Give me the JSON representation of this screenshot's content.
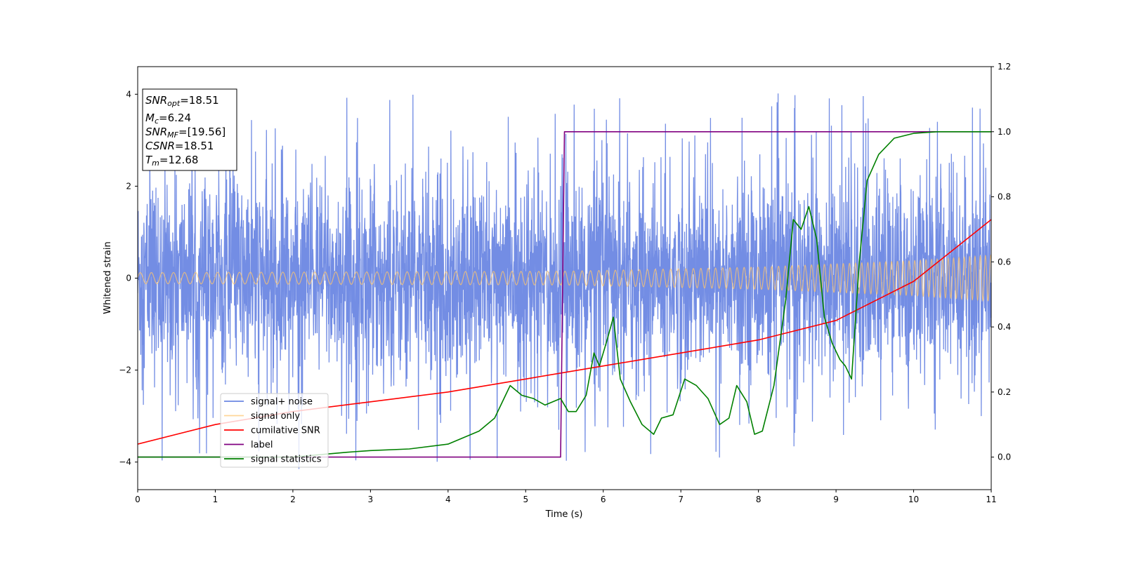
{
  "chart_data": {
    "type": "line",
    "xlabel": "Time (s)",
    "ylabel": "Whitened strain",
    "xlim": [
      0,
      11
    ],
    "ylim": [
      -4.6,
      4.6
    ],
    "y2lim": [
      -0.1,
      1.2
    ],
    "xticks": [
      0,
      1,
      2,
      3,
      4,
      5,
      6,
      7,
      8,
      9,
      10,
      11
    ],
    "yticks": [
      -4,
      -2,
      0,
      2,
      4
    ],
    "y2ticks": [
      0.0,
      0.2,
      0.4,
      0.6,
      0.8,
      1.0,
      1.2
    ],
    "y2tick_labels": [
      "0.0",
      "0.2",
      "0.4",
      "0.6",
      "0.8",
      "1.0",
      "1.2"
    ],
    "grid": false,
    "legend_position": "lower-left",
    "info_box": {
      "snr_opt": {
        "sym": "SNR",
        "sub": "opt",
        "val": "=18.51"
      },
      "mc": {
        "sym": "M",
        "sub": "c",
        "val": "=6.24"
      },
      "snr_mf": {
        "sym": "SNR",
        "sub": "MF",
        "val": "=[19.56]"
      },
      "csnr": {
        "sym": "CSNR",
        "val": "=18.51"
      },
      "tm": {
        "sym": "T",
        "sub": "m",
        "val": "=12.68"
      }
    },
    "series": [
      {
        "name": "signal+ noise",
        "color": "#6b87e3",
        "axis": "left",
        "description_envelope": {
          "typical_amplitude": 1.8,
          "peak_amplitude": 4.2,
          "min_value": -4.1
        }
      },
      {
        "name": "signal only",
        "color": "#ffc56e",
        "axis": "left",
        "amplitude": [
          [
            0,
            0.12
          ],
          [
            5.5,
            0.15
          ],
          [
            8,
            0.24
          ],
          [
            10,
            0.38
          ],
          [
            11,
            0.5
          ]
        ]
      },
      {
        "name": "cumilative SNR",
        "color": "#ff0000",
        "axis": "right",
        "x": [
          0,
          1,
          2,
          3,
          4,
          5,
          6,
          7,
          8,
          9,
          10,
          11
        ],
        "y": [
          0.04,
          0.1,
          0.14,
          0.17,
          0.2,
          0.24,
          0.28,
          0.32,
          0.36,
          0.42,
          0.54,
          0.73
        ]
      },
      {
        "name": "label",
        "color": "#800080",
        "axis": "right",
        "x": [
          0,
          5.45,
          5.5,
          11
        ],
        "y": [
          0.0,
          0.0,
          1.0,
          1.0
        ]
      },
      {
        "name": "signal statistics",
        "color": "#008000",
        "axis": "right",
        "x": [
          0,
          2.0,
          2.7,
          3.0,
          3.5,
          4.0,
          4.4,
          4.6,
          4.8,
          4.95,
          5.1,
          5.25,
          5.35,
          5.45,
          5.55,
          5.65,
          5.78,
          5.88,
          5.95,
          6.05,
          6.13,
          6.22,
          6.35,
          6.5,
          6.65,
          6.75,
          6.9,
          7.05,
          7.2,
          7.35,
          7.5,
          7.62,
          7.72,
          7.85,
          7.95,
          8.05,
          8.2,
          8.35,
          8.45,
          8.55,
          8.65,
          8.75,
          8.85,
          8.95,
          9.05,
          9.12,
          9.2,
          9.3,
          9.4,
          9.55,
          9.75,
          10.0,
          10.3,
          11.0
        ],
        "y": [
          0.0,
          0.0,
          0.015,
          0.02,
          0.025,
          0.04,
          0.08,
          0.12,
          0.22,
          0.19,
          0.18,
          0.16,
          0.17,
          0.18,
          0.14,
          0.14,
          0.19,
          0.32,
          0.28,
          0.36,
          0.43,
          0.24,
          0.17,
          0.1,
          0.07,
          0.12,
          0.13,
          0.24,
          0.22,
          0.18,
          0.1,
          0.12,
          0.22,
          0.17,
          0.07,
          0.08,
          0.22,
          0.48,
          0.73,
          0.7,
          0.77,
          0.67,
          0.43,
          0.35,
          0.3,
          0.28,
          0.24,
          0.6,
          0.85,
          0.93,
          0.98,
          0.995,
          1.0,
          1.0
        ]
      }
    ]
  }
}
